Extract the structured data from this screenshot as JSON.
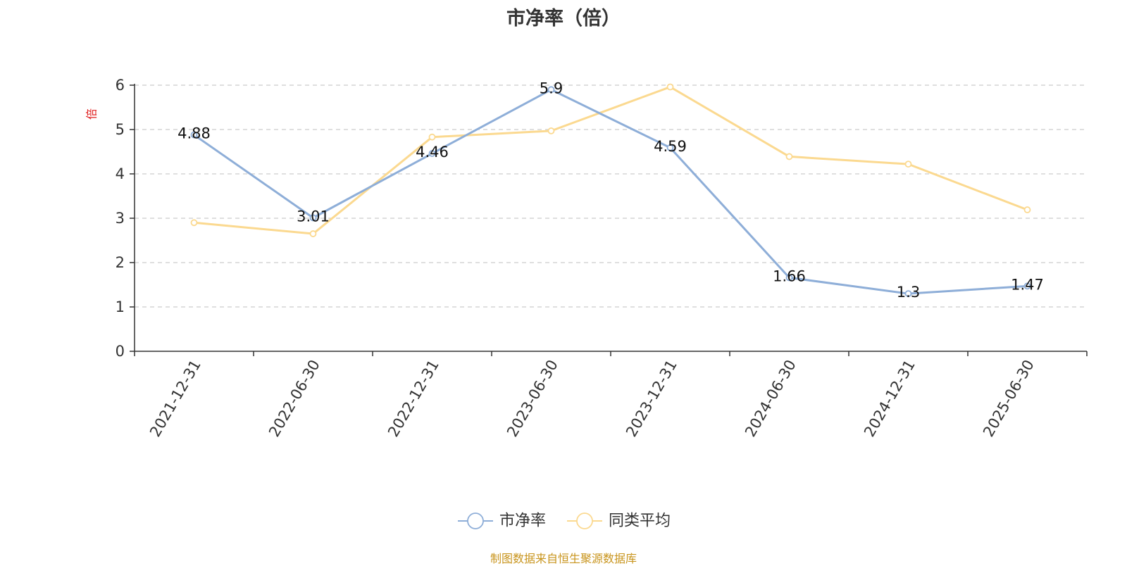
{
  "title": "市净率（倍）",
  "source": "制图数据来自恒生聚源数据库",
  "chart_data": {
    "type": "line",
    "title": "市净率（倍）",
    "ylabel": "倍",
    "ylim": [
      0,
      6
    ],
    "yticks": [
      0,
      1,
      2,
      3,
      4,
      5,
      6
    ],
    "categories": [
      "2021-12-31",
      "2022-06-30",
      "2022-12-31",
      "2023-06-30",
      "2023-12-31",
      "2024-06-30",
      "2024-12-31",
      "2025-06-30"
    ],
    "grid": true,
    "legend_position": "bottom-center",
    "series": [
      {
        "name": "市净率",
        "color": "#8eaed8",
        "values": [
          4.88,
          3.01,
          4.46,
          5.9,
          4.59,
          1.66,
          1.3,
          1.47
        ],
        "labels": [
          "4.88",
          "3.01",
          "4.46",
          "5.9",
          "4.59",
          "1.66",
          "1.3",
          "1.47"
        ]
      },
      {
        "name": "同类平均",
        "color": "#fbd990",
        "values": [
          2.9,
          2.65,
          4.83,
          4.97,
          5.96,
          4.39,
          4.22,
          3.19
        ]
      }
    ]
  }
}
